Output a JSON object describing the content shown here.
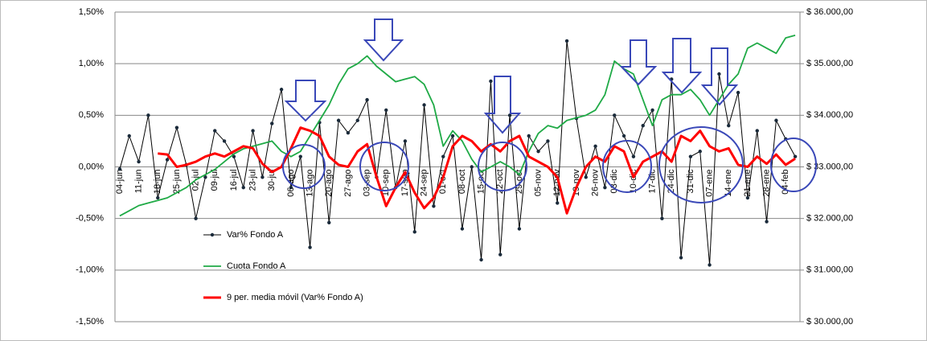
{
  "chart_data": {
    "type": "line",
    "categories": [
      "04-jun",
      null,
      "11-jun",
      null,
      "18-jun",
      null,
      "25-jun",
      null,
      "02-jul",
      null,
      "09-jul",
      null,
      "16-jul",
      null,
      "23-jul",
      null,
      "30-jul",
      null,
      "06-ago",
      null,
      "13-ago",
      null,
      "20-ago",
      null,
      "27-ago",
      null,
      "03-sep",
      null,
      "10-sep",
      null,
      "17-sep",
      null,
      "24-sep",
      null,
      "01-oct",
      null,
      "08-oct",
      null,
      "15-oct",
      null,
      "22-oct",
      null,
      "29-oct",
      null,
      "05-nov",
      null,
      "12-nov",
      null,
      "19-nov",
      null,
      "26-nov",
      null,
      "03-dic",
      null,
      "10-dic",
      null,
      "17-dic",
      null,
      "24-dic",
      null,
      "31-dic",
      null,
      "07-ene",
      null,
      "14-ene",
      null,
      "21-ene",
      null,
      "28-ene",
      null,
      "04-feb",
      null
    ],
    "series": [
      {
        "name": "Var% Fondo A",
        "color": "#000000",
        "axis": "y",
        "values": [
          -0.02,
          0.3,
          0.05,
          0.5,
          -0.3,
          0.07,
          0.38,
          0.02,
          -0.5,
          -0.1,
          0.35,
          0.25,
          0.1,
          -0.2,
          0.35,
          -0.1,
          0.42,
          0.75,
          -0.2,
          0.1,
          -0.78,
          0.43,
          -0.54,
          0.45,
          0.33,
          0.45,
          0.65,
          -0.1,
          0.55,
          -0.2,
          0.25,
          -0.63,
          0.6,
          -0.38,
          0.1,
          0.3,
          -0.6,
          0.0,
          -0.9,
          0.83,
          -0.85,
          0.5,
          -0.6,
          0.3,
          0.15,
          0.25,
          -0.35,
          1.22,
          0.47,
          -0.1,
          0.2,
          -0.2,
          0.5,
          0.3,
          0.1,
          0.4,
          0.55,
          -0.5,
          0.85,
          -0.88,
          0.1,
          0.15,
          -0.95,
          0.9,
          0.4,
          0.72,
          -0.3,
          0.35,
          -0.53,
          0.45,
          0.27,
          0.1
        ]
      },
      {
        "name": "Cuota Fondo A",
        "color": "#1faa46",
        "axis": "y2",
        "values": [
          32050,
          32150,
          32250,
          32300,
          32350,
          32400,
          32500,
          32600,
          32750,
          32850,
          32950,
          33100,
          33250,
          33350,
          33400,
          33450,
          33500,
          33300,
          33200,
          33300,
          33600,
          33900,
          34200,
          34600,
          34900,
          35000,
          35150,
          34950,
          34800,
          34650,
          34700,
          34750,
          34600,
          34200,
          33400,
          33700,
          33500,
          33150,
          32900,
          33000,
          33100,
          33000,
          32850,
          33300,
          33650,
          33800,
          33750,
          33900,
          33950,
          34000,
          34100,
          34400,
          35050,
          34900,
          34800,
          34300,
          33800,
          34300,
          34400,
          34400,
          34500,
          34300,
          34000,
          34300,
          34600,
          34800,
          35300,
          35400,
          35300,
          35200,
          35500,
          35550
        ]
      },
      {
        "name": "9 per. media móvil (Var% Fondo A)",
        "color": "#ff0000",
        "axis": "y",
        "values": [
          null,
          null,
          null,
          null,
          0.13,
          0.12,
          0.0,
          0.02,
          0.05,
          0.1,
          0.13,
          0.1,
          0.15,
          0.2,
          0.18,
          0.03,
          -0.05,
          0.0,
          0.18,
          0.38,
          0.35,
          0.3,
          0.1,
          0.02,
          0.0,
          0.15,
          0.22,
          -0.1,
          -0.38,
          -0.2,
          -0.05,
          -0.25,
          -0.4,
          -0.3,
          -0.1,
          0.2,
          0.3,
          0.25,
          0.15,
          0.22,
          0.15,
          0.25,
          0.3,
          0.1,
          0.05,
          0.0,
          -0.1,
          -0.45,
          -0.2,
          0.0,
          0.1,
          0.05,
          0.2,
          0.15,
          -0.1,
          0.05,
          0.1,
          0.15,
          0.05,
          0.3,
          0.25,
          0.35,
          0.2,
          0.15,
          0.18,
          0.02,
          0.0,
          0.1,
          0.03,
          0.12,
          0.02,
          0.08
        ]
      }
    ],
    "ylim": [
      -1.5,
      1.5
    ],
    "yticks": [
      {
        "value": -1.5,
        "label": "-1,50%"
      },
      {
        "value": -1.0,
        "label": "-1,00%"
      },
      {
        "value": -0.5,
        "label": "-0,50%"
      },
      {
        "value": 0.0,
        "label": "0,00%"
      },
      {
        "value": 0.5,
        "label": "0,50%"
      },
      {
        "value": 1.0,
        "label": "1,00%"
      },
      {
        "value": 1.5,
        "label": "1,50%"
      }
    ],
    "y2lim": [
      30000,
      36000
    ],
    "y2ticks": [
      {
        "value": 30000,
        "label": "$ 30.000,00"
      },
      {
        "value": 31000,
        "label": "$ 31.000,00"
      },
      {
        "value": 32000,
        "label": "$ 32.000,00"
      },
      {
        "value": 33000,
        "label": "$ 33.000,00"
      },
      {
        "value": 34000,
        "label": "$ 34.000,00"
      },
      {
        "value": 35000,
        "label": "$ 35.000,00"
      },
      {
        "value": 36000,
        "label": "$ 36.000,00"
      }
    ],
    "grid": true
  }
}
